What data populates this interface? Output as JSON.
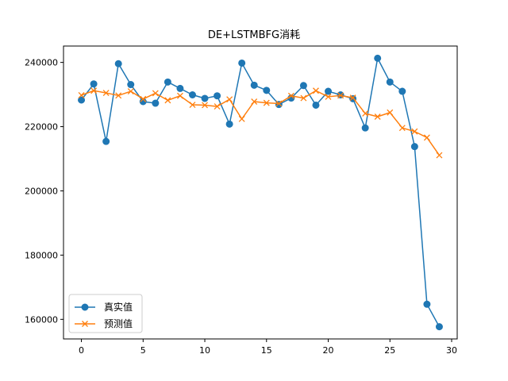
{
  "chart_data": {
    "type": "line",
    "title": "DE+LSTMBFG消耗",
    "xlabel": "",
    "ylabel": "",
    "xlim": [
      -1.45,
      30.45
    ],
    "ylim": [
      153900,
      245100
    ],
    "x_ticks": [
      0,
      5,
      10,
      15,
      20,
      25,
      30
    ],
    "y_ticks": [
      160000,
      180000,
      200000,
      220000,
      240000
    ],
    "x_tick_labels": [
      "0",
      "5",
      "10",
      "15",
      "20",
      "25",
      "30"
    ],
    "y_tick_labels": [
      "160000",
      "180000",
      "200000",
      "220000",
      "240000"
    ],
    "grid": false,
    "legend_position": "lower-left",
    "x": [
      0,
      1,
      2,
      3,
      4,
      5,
      6,
      7,
      8,
      9,
      10,
      11,
      12,
      13,
      14,
      15,
      16,
      17,
      18,
      19,
      20,
      21,
      22,
      23,
      24,
      25,
      26,
      27,
      28,
      29
    ],
    "series": [
      {
        "name": "真实值",
        "color": "#1f77b4",
        "marker": "circle",
        "values": [
          228300,
          233300,
          215400,
          239600,
          233100,
          227800,
          227300,
          233900,
          231900,
          229900,
          228800,
          229600,
          220800,
          239800,
          232900,
          231300,
          226900,
          228900,
          232800,
          226700,
          231000,
          229900,
          228700,
          219600,
          241300,
          233900,
          231000,
          213800,
          164700,
          157700
        ]
      },
      {
        "name": "预测值",
        "color": "#ff7f0e",
        "marker": "x",
        "values": [
          229800,
          231200,
          230500,
          229700,
          231000,
          228600,
          230400,
          228200,
          229600,
          226800,
          226700,
          226300,
          228500,
          222400,
          227800,
          227400,
          227200,
          229600,
          228900,
          231200,
          229300,
          229700,
          229000,
          224100,
          223100,
          224400,
          219600,
          218500,
          216600,
          211100
        ]
      }
    ]
  }
}
